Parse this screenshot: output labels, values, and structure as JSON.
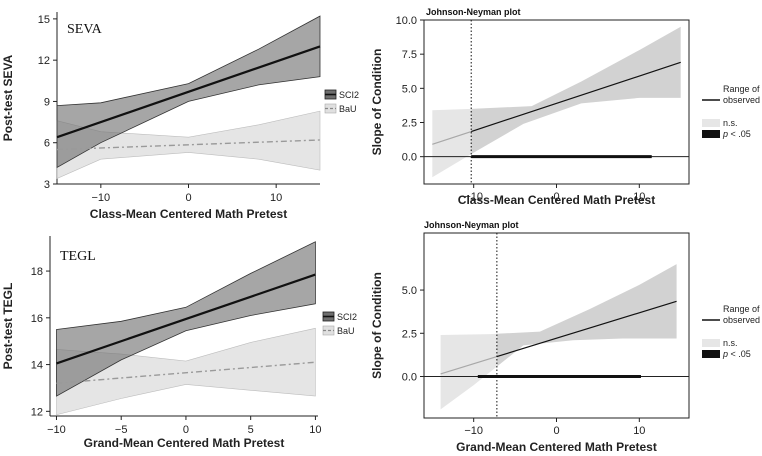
{
  "chart_data": [
    {
      "type": "line",
      "title": "SEVA",
      "xlabel": "Class-Mean Centered Math Pretest",
      "ylabel": "Post-test SEVA",
      "xlim": [
        -15,
        15
      ],
      "ylim": [
        3,
        15.5
      ],
      "xticks": [
        -10,
        0,
        10
      ],
      "yticks": [
        3,
        6,
        9,
        12,
        15
      ],
      "legend": [
        "SCI2",
        "BaU"
      ],
      "series": [
        {
          "name": "SCI2",
          "x": [
            -15,
            15
          ],
          "y": [
            6.4,
            13.0
          ],
          "lower": [
            [
              -15,
              4.2
            ],
            [
              -10,
              6.0
            ],
            [
              0,
              9.0
            ],
            [
              8,
              10.2
            ],
            [
              15,
              10.8
            ]
          ],
          "upper": [
            [
              -15,
              8.7
            ],
            [
              -10,
              8.9
            ],
            [
              0,
              10.3
            ],
            [
              8,
              12.8
            ],
            [
              15,
              15.2
            ]
          ]
        },
        {
          "name": "BaU",
          "x": [
            -15,
            15
          ],
          "y": [
            5.5,
            6.2
          ],
          "lower": [
            [
              -15,
              3.4
            ],
            [
              -10,
              4.8
            ],
            [
              0,
              5.3
            ],
            [
              8,
              4.8
            ],
            [
              15,
              4.0
            ]
          ],
          "upper": [
            [
              -15,
              7.6
            ],
            [
              -10,
              6.8
            ],
            [
              0,
              6.4
            ],
            [
              8,
              7.3
            ],
            [
              15,
              8.3
            ]
          ]
        }
      ]
    },
    {
      "type": "line",
      "title": "Johnson-Neyman plot",
      "xlabel": "Class-Mean Centered Math Pretest",
      "ylabel": "Slope of Condition",
      "xlim": [
        -16,
        16
      ],
      "ylim": [
        -2.0,
        10.0
      ],
      "xticks": [
        -10,
        0,
        10
      ],
      "yticks": [
        0.0,
        2.5,
        5.0,
        7.5,
        10.0
      ],
      "ytick_labels": [
        "0.0",
        "2.5",
        "5.0",
        "7.5",
        "10.0"
      ],
      "jn_point": -10.3,
      "observed_range": [
        -10.3,
        11.5
      ],
      "legend": [
        "Range of observed data",
        "n.s.",
        "p < .05"
      ],
      "series": [
        {
          "name": "slope",
          "x": [
            -15,
            15
          ],
          "y": [
            0.9,
            6.9
          ],
          "lower": [
            [
              -15,
              -1.5
            ],
            [
              -10,
              0.3
            ],
            [
              -4,
              2.4
            ],
            [
              3,
              3.9
            ],
            [
              10,
              4.3
            ],
            [
              15,
              4.3
            ]
          ],
          "upper": [
            [
              -15,
              3.4
            ],
            [
              -10,
              3.5
            ],
            [
              -3,
              3.7
            ],
            [
              3,
              5.5
            ],
            [
              10,
              7.8
            ],
            [
              15,
              9.5
            ]
          ]
        }
      ]
    },
    {
      "type": "line",
      "title": "TEGL",
      "xlabel": "Grand-Mean Centered Math Pretest",
      "ylabel": "Post-test TEGL",
      "xlim": [
        -10.5,
        10.2
      ],
      "ylim": [
        11.8,
        19.5
      ],
      "xticks": [
        -10,
        -5,
        0,
        5,
        10
      ],
      "yticks": [
        12,
        14,
        16,
        18
      ],
      "legend": [
        "SCI2",
        "BaU"
      ],
      "series": [
        {
          "name": "SCI2",
          "x": [
            -10,
            10
          ],
          "y": [
            14.05,
            17.85
          ],
          "lower": [
            [
              -10,
              12.65
            ],
            [
              -5,
              14.2
            ],
            [
              0,
              15.45
            ],
            [
              5,
              16.1
            ],
            [
              10,
              16.6
            ]
          ],
          "upper": [
            [
              -10,
              15.5
            ],
            [
              -5,
              15.85
            ],
            [
              0,
              16.45
            ],
            [
              5,
              17.9
            ],
            [
              10,
              19.25
            ]
          ]
        },
        {
          "name": "BaU",
          "x": [
            -10,
            10
          ],
          "y": [
            13.2,
            14.1
          ],
          "lower": [
            [
              -10,
              11.85
            ],
            [
              -5,
              12.55
            ],
            [
              0,
              13.15
            ],
            [
              5,
              12.9
            ],
            [
              10,
              12.65
            ]
          ],
          "upper": [
            [
              -10,
              14.65
            ],
            [
              -5,
              14.45
            ],
            [
              0,
              14.15
            ],
            [
              5,
              14.95
            ],
            [
              10,
              15.55
            ]
          ]
        }
      ]
    },
    {
      "type": "line",
      "title": "Johnson-Neyman plot",
      "xlabel": "Grand-Mean Centered Math Pretest",
      "ylabel": "Slope of Condition",
      "xlim": [
        -16,
        16
      ],
      "ylim": [
        -2.4,
        8.3
      ],
      "xticks": [
        -10,
        0,
        10
      ],
      "yticks": [
        0.0,
        2.5,
        5.0
      ],
      "ytick_labels": [
        "0.0",
        "2.5",
        "5.0"
      ],
      "jn_point": -7.2,
      "observed_range": [
        -9.5,
        10.2
      ],
      "legend": [
        "Range of observed data",
        "n.s.",
        "p < .05"
      ],
      "series": [
        {
          "name": "slope",
          "x": [
            -14,
            14.5
          ],
          "y": [
            0.15,
            4.35
          ],
          "lower": [
            [
              -14,
              -1.9
            ],
            [
              -10,
              -0.5
            ],
            [
              -4,
              1.8
            ],
            [
              2,
              2.1
            ],
            [
              8,
              2.2
            ],
            [
              14.5,
              2.2
            ]
          ],
          "upper": [
            [
              -14,
              2.4
            ],
            [
              -8,
              2.45
            ],
            [
              -2,
              2.6
            ],
            [
              4,
              3.9
            ],
            [
              10,
              5.3
            ],
            [
              14.5,
              6.5
            ]
          ]
        }
      ]
    }
  ]
}
